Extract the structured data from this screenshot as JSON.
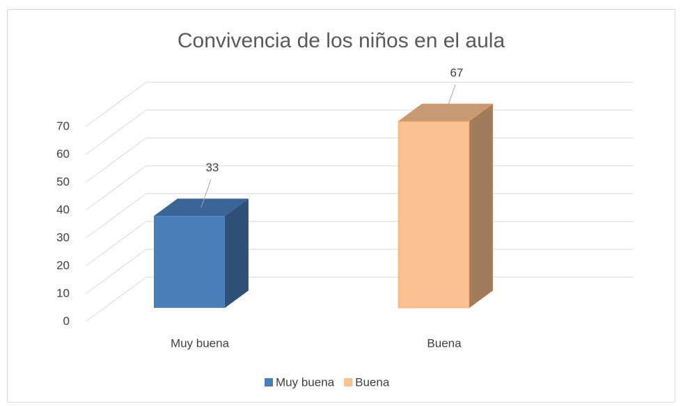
{
  "chart_data": {
    "type": "bar3d",
    "title": "Convivencia de los niños en el aula",
    "categories": [
      "Muy buena",
      "Buena"
    ],
    "values": [
      33,
      67
    ],
    "colors": [
      "#4a7ebb",
      "#fac090"
    ],
    "ylim": [
      0,
      70
    ],
    "yticks": [
      0,
      10,
      20,
      30,
      40,
      50,
      60,
      70
    ],
    "grid": true,
    "legend": "bottom"
  }
}
